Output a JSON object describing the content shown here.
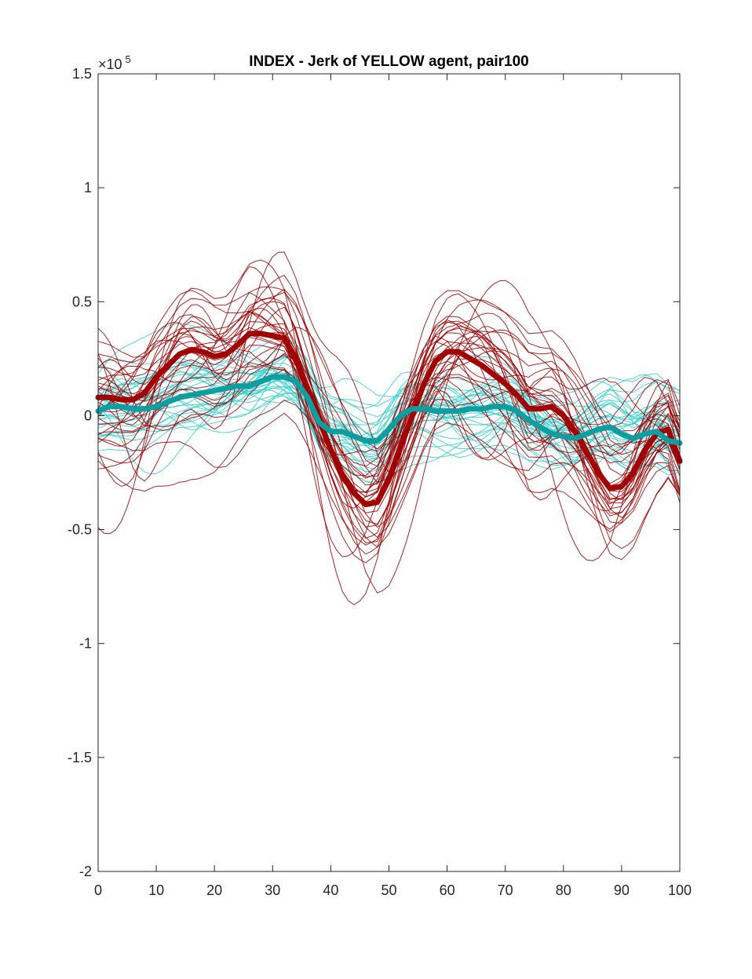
{
  "chart_data": {
    "type": "line",
    "title": "INDEX - Jerk of YELLOW agent, pair100",
    "xlabel": "",
    "ylabel": "",
    "xlim": [
      0,
      100
    ],
    "ylim": [
      -2,
      1.5
    ],
    "y_multiplier": "×10",
    "y_exponent": "5",
    "x_ticks": [
      "0",
      "10",
      "20",
      "30",
      "40",
      "50",
      "60",
      "70",
      "80",
      "90",
      "100"
    ],
    "y_ticks": [
      "-2",
      "-1.5",
      "-1",
      "-0.5",
      "0",
      "0.5",
      "1",
      "1.5"
    ],
    "x_tick_values": [
      0,
      10,
      20,
      30,
      40,
      50,
      60,
      70,
      80,
      90,
      100
    ],
    "y_tick_values": [
      -2,
      -1.5,
      -1,
      -0.5,
      0,
      0.5,
      1,
      1.5
    ],
    "grid": false,
    "x": [
      0,
      2,
      4,
      6,
      8,
      10,
      12,
      14,
      16,
      18,
      20,
      22,
      24,
      26,
      28,
      30,
      32,
      34,
      36,
      38,
      40,
      42,
      44,
      46,
      48,
      50,
      52,
      54,
      56,
      58,
      60,
      62,
      64,
      66,
      68,
      70,
      72,
      74,
      76,
      78,
      80,
      82,
      84,
      86,
      88,
      90,
      92,
      94,
      96,
      98,
      100
    ],
    "series": [
      {
        "color": "#a10000",
        "role": "mean",
        "values": [
          0.08,
          0.08,
          0.07,
          0.07,
          0.1,
          0.17,
          0.22,
          0.27,
          0.29,
          0.28,
          0.26,
          0.27,
          0.31,
          0.36,
          0.36,
          0.35,
          0.34,
          0.25,
          0.12,
          -0.02,
          -0.15,
          -0.26,
          -0.34,
          -0.39,
          -0.38,
          -0.28,
          -0.14,
          0.0,
          0.14,
          0.24,
          0.28,
          0.28,
          0.25,
          0.22,
          0.18,
          0.14,
          0.09,
          0.03,
          0.03,
          0.04,
          0.0,
          -0.07,
          -0.16,
          -0.25,
          -0.32,
          -0.31,
          -0.25,
          -0.15,
          -0.08,
          -0.06,
          -0.2
        ]
      },
      {
        "color": "#0d9ea1",
        "role": "mean",
        "values": [
          0.02,
          0.04,
          0.04,
          0.03,
          0.03,
          0.04,
          0.06,
          0.08,
          0.09,
          0.1,
          0.11,
          0.12,
          0.13,
          0.13,
          0.15,
          0.17,
          0.17,
          0.15,
          0.08,
          -0.03,
          -0.07,
          -0.07,
          -0.09,
          -0.11,
          -0.11,
          -0.06,
          0.0,
          0.03,
          0.03,
          0.02,
          0.02,
          0.02,
          0.03,
          0.03,
          0.04,
          0.04,
          0.02,
          -0.02,
          -0.05,
          -0.08,
          -0.09,
          -0.1,
          -0.08,
          -0.06,
          -0.05,
          -0.08,
          -0.1,
          -0.08,
          -0.07,
          -0.11,
          -0.12
        ]
      }
    ],
    "trial_colors": [
      "#990000",
      "#33cccc"
    ],
    "trial_count_each": 32
  }
}
